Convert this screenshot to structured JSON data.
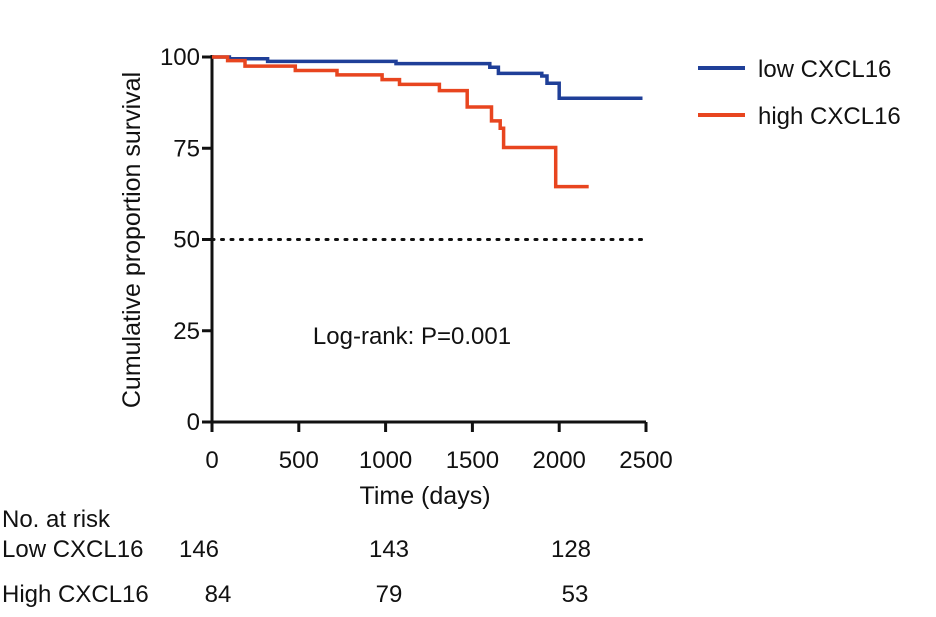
{
  "chart_data": {
    "type": "line",
    "subtype": "kaplan-meier-step",
    "xlabel": "Time (days)",
    "ylabel": "Cumulative proportion survival",
    "xlim": [
      0,
      2500
    ],
    "ylim": [
      0,
      100
    ],
    "xticks": [
      0,
      500,
      1000,
      1500,
      2000,
      2500
    ],
    "yticks": [
      0,
      25,
      50,
      75,
      100
    ],
    "grid": false,
    "legend_position": "top-right outside plot",
    "reference_line": {
      "y": 50,
      "style": "dotted"
    },
    "annotation": "Log-rank: P=0.001",
    "series": [
      {
        "name": "low CXCL16",
        "color": "#1f3f98",
        "points": [
          [
            0,
            100
          ],
          [
            100,
            99.5
          ],
          [
            320,
            98.8
          ],
          [
            1060,
            98.2
          ],
          [
            1600,
            97.2
          ],
          [
            1650,
            95.5
          ],
          [
            1900,
            94.8
          ],
          [
            1930,
            92.8
          ],
          [
            2000,
            88.7
          ],
          [
            2480,
            88.7
          ]
        ]
      },
      {
        "name": "high CXCL16",
        "color": "#e8451f",
        "points": [
          [
            0,
            100
          ],
          [
            90,
            99
          ],
          [
            190,
            97.5
          ],
          [
            480,
            96.3
          ],
          [
            720,
            95.1
          ],
          [
            980,
            93.8
          ],
          [
            1080,
            92.5
          ],
          [
            1310,
            90.8
          ],
          [
            1470,
            86.3
          ],
          [
            1610,
            82.5
          ],
          [
            1660,
            80.5
          ],
          [
            1680,
            75.2
          ],
          [
            1980,
            64.5
          ],
          [
            2170,
            64.5
          ]
        ]
      }
    ]
  },
  "risk_table": {
    "title": "No. at risk",
    "rows": [
      {
        "label": "Low CXCL16",
        "values": [
          "146",
          "143",
          "128"
        ]
      },
      {
        "label": "High CXCL16",
        "values": [
          "84",
          "79",
          "53"
        ]
      }
    ]
  }
}
